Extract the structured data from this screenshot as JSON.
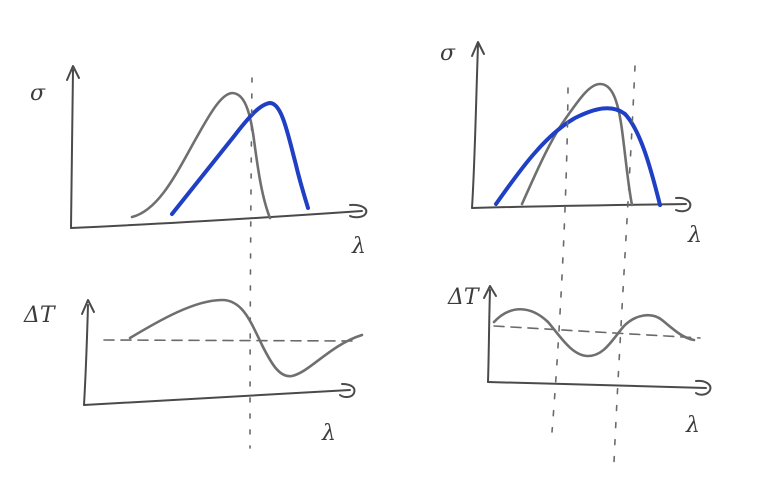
{
  "colors": {
    "paper": "#ffffff",
    "axis": "#4a4a4a",
    "curve_gray": "#6f6f6f",
    "curve_blue": "#1f3fc4",
    "guide": "#6a6a6a"
  },
  "left_top": {
    "y_label": "σ",
    "x_label": "λ"
  },
  "left_bottom": {
    "y_label": "ΔT",
    "x_label": "λ"
  },
  "right_top": {
    "y_label": "σ",
    "x_label": "λ"
  },
  "right_bottom": {
    "y_label": "ΔT",
    "x_label": "λ"
  }
}
